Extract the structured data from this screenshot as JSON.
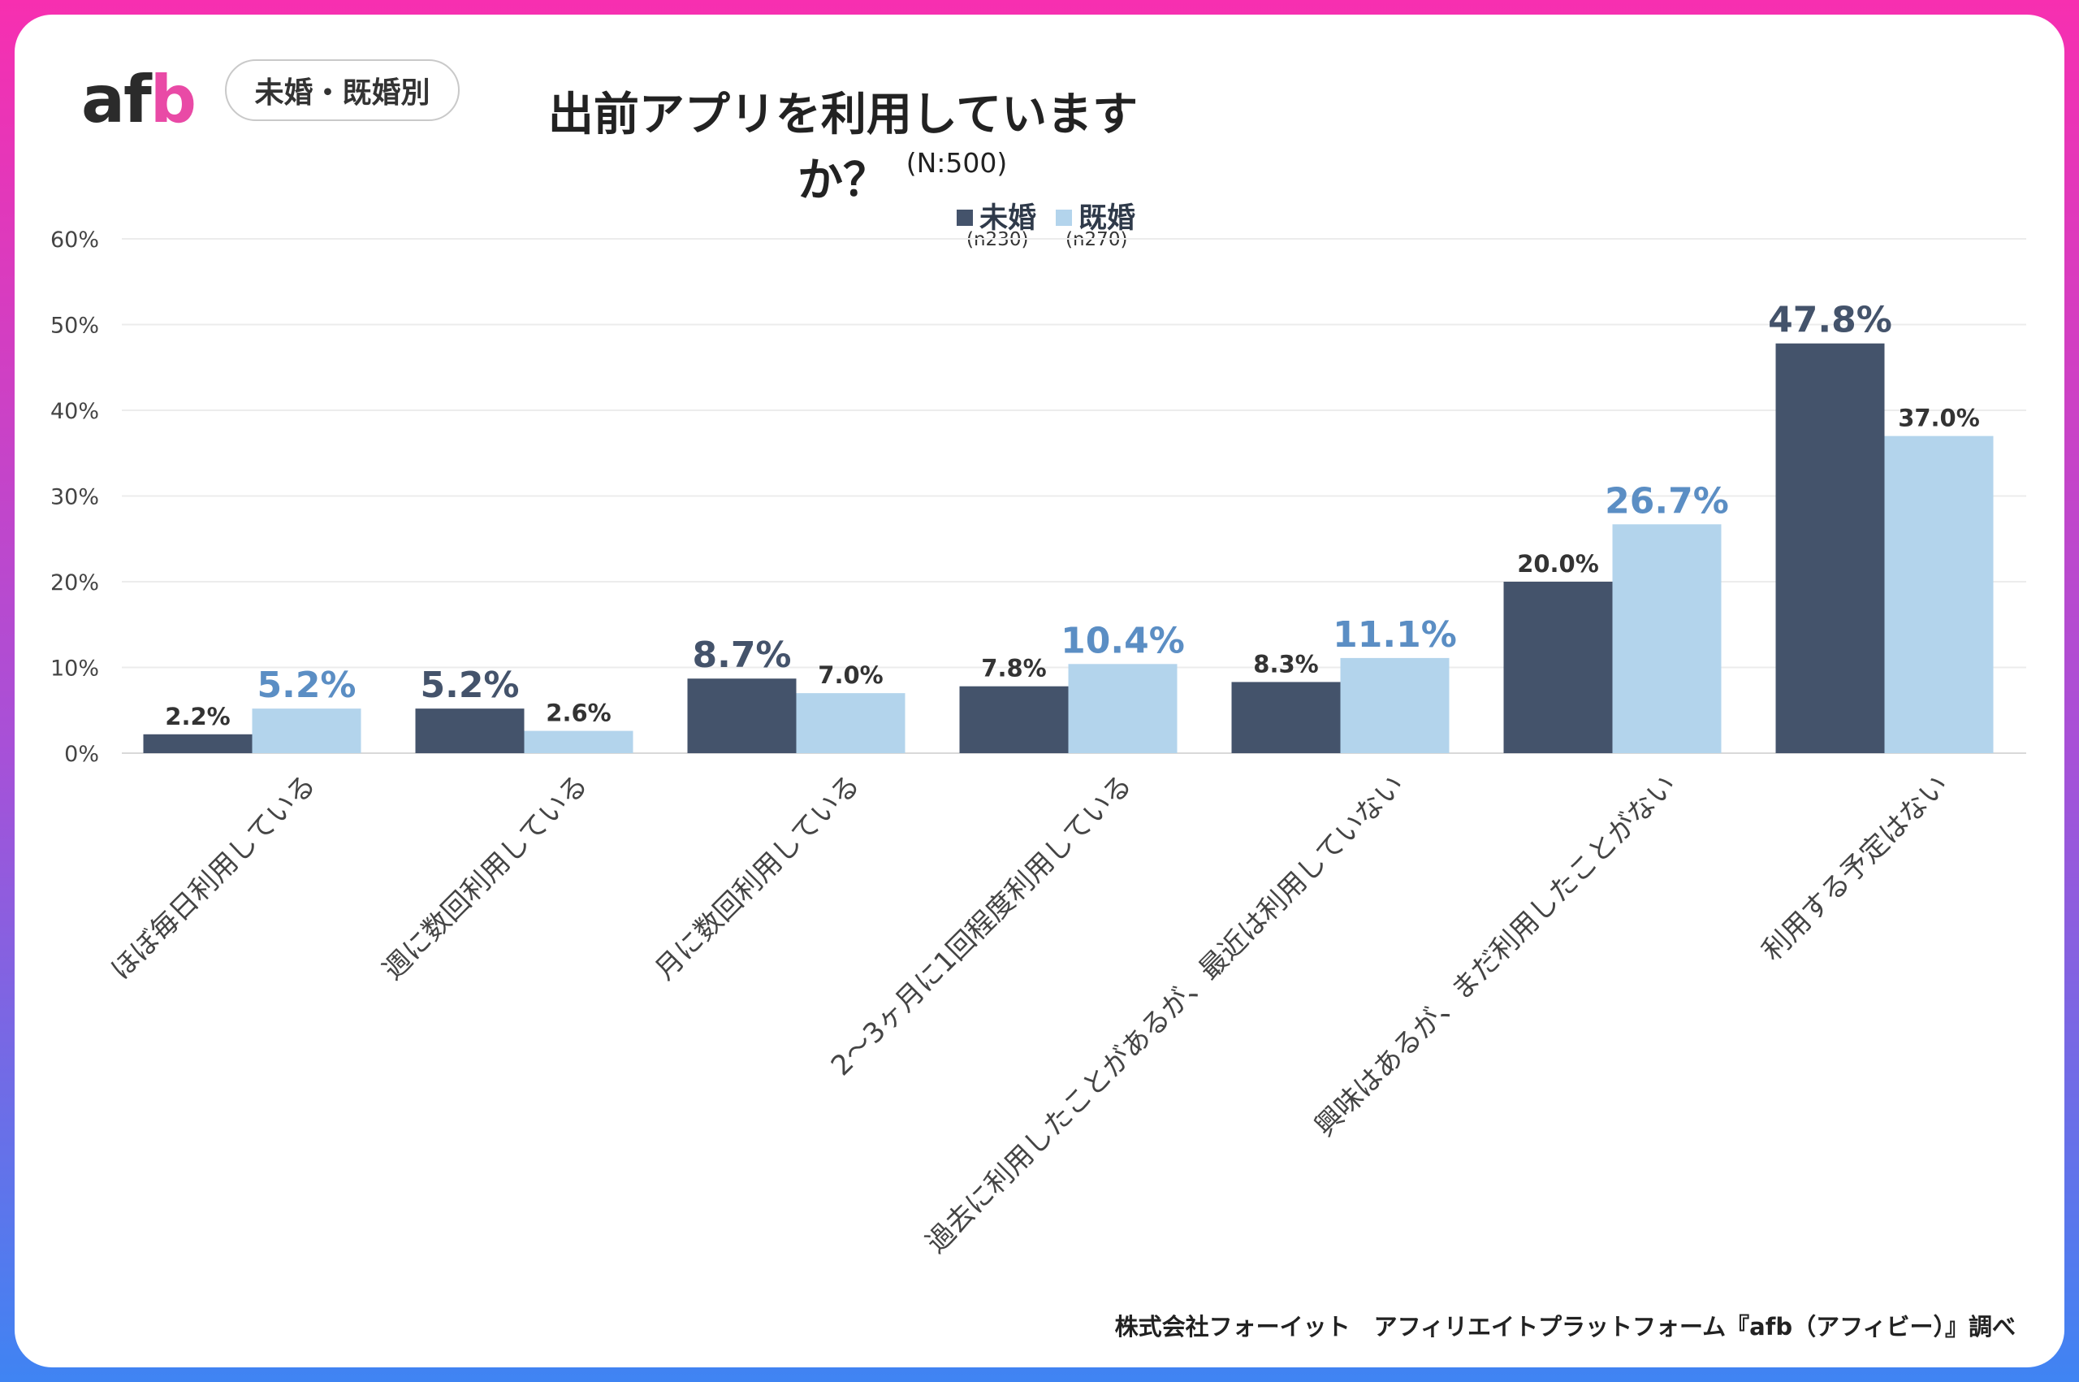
{
  "logo": {
    "text_main": "af",
    "text_accent": "b"
  },
  "tag_label": "未婚・既婚別",
  "colors": {
    "single": "#44536b",
    "married": "#b3d4ec",
    "married_highlight": "#5b8ec4",
    "single_highlight": "#44536b"
  },
  "legend": {
    "single": {
      "name": "未婚",
      "n": "(n230)"
    },
    "married": {
      "name": "既婚",
      "n": "(n270)"
    }
  },
  "source": "株式会社フォーイット　アフィリエイトプラットフォーム『afb（アフィビー）』調べ",
  "chart_data": {
    "type": "bar",
    "title": "出前アプリを利用していますか？",
    "subtitle": "(N:500)",
    "categories": [
      "ほぼ毎日利用している",
      "週に数回利用している",
      "月に数回利用している",
      "2～3ヶ月に1回程度利用している",
      "過去に利用したことがあるが、最近は利用していない",
      "興味はあるが、まだ利用したことがない",
      "利用する予定はない"
    ],
    "series": [
      {
        "name": "未婚",
        "values": [
          2.2,
          5.2,
          8.7,
          7.8,
          8.3,
          20.0,
          47.8
        ]
      },
      {
        "name": "既婚",
        "values": [
          5.2,
          2.6,
          7.0,
          10.4,
          11.1,
          26.7,
          37.0
        ]
      }
    ],
    "value_labels": [
      [
        "2.2%",
        "5.2%",
        "8.7%",
        "7.8%",
        "8.3%",
        "20.0%",
        "47.8%"
      ],
      [
        "5.2%",
        "2.6%",
        "7.0%",
        "10.4%",
        "11.1%",
        "26.7%",
        "37.0%"
      ]
    ],
    "highlight": [
      [
        false,
        true,
        true,
        false,
        false,
        false,
        true
      ],
      [
        true,
        false,
        false,
        true,
        true,
        true,
        false
      ]
    ],
    "yticks": [
      "0%",
      "10%",
      "20%",
      "30%",
      "40%",
      "50%",
      "60%"
    ],
    "ylim": [
      0,
      60
    ],
    "grid": true,
    "legend_position": "top-center"
  }
}
